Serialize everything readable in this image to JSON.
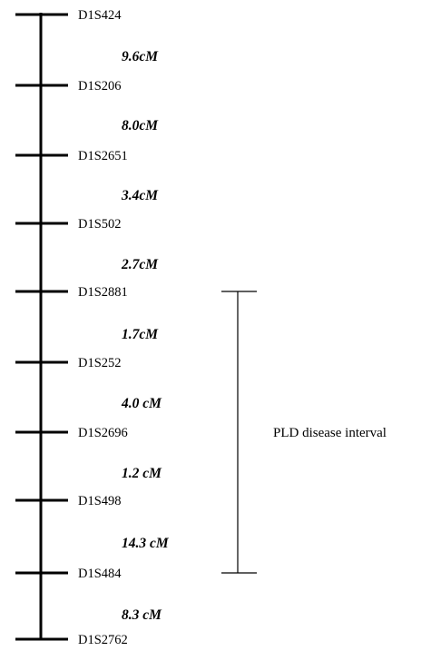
{
  "genetic_map": {
    "markers": [
      {
        "name": "D1S424"
      },
      {
        "name": "D1S206"
      },
      {
        "name": "D1S2651"
      },
      {
        "name": "D1S502"
      },
      {
        "name": "D1S2881"
      },
      {
        "name": "D1S252"
      },
      {
        "name": "D1S2696"
      },
      {
        "name": "D1S498"
      },
      {
        "name": "D1S484"
      },
      {
        "name": "D1S2762"
      }
    ],
    "distances": [
      {
        "label": "9.6cM",
        "value_cM": 9.6
      },
      {
        "label": "8.0cM",
        "value_cM": 8.0
      },
      {
        "label": "3.4cM",
        "value_cM": 3.4
      },
      {
        "label": "2.7cM",
        "value_cM": 2.7
      },
      {
        "label": "1.7cM",
        "value_cM": 1.7
      },
      {
        "label": "4.0 cM",
        "value_cM": 4.0
      },
      {
        "label": "1.2 cM",
        "value_cM": 1.2
      },
      {
        "label": "14.3 cM",
        "value_cM": 14.3
      },
      {
        "label": "8.3 cM",
        "value_cM": 8.3
      }
    ],
    "interval": {
      "label": "PLD disease interval",
      "from_marker": "D1S2881",
      "to_marker": "D1S484"
    }
  }
}
